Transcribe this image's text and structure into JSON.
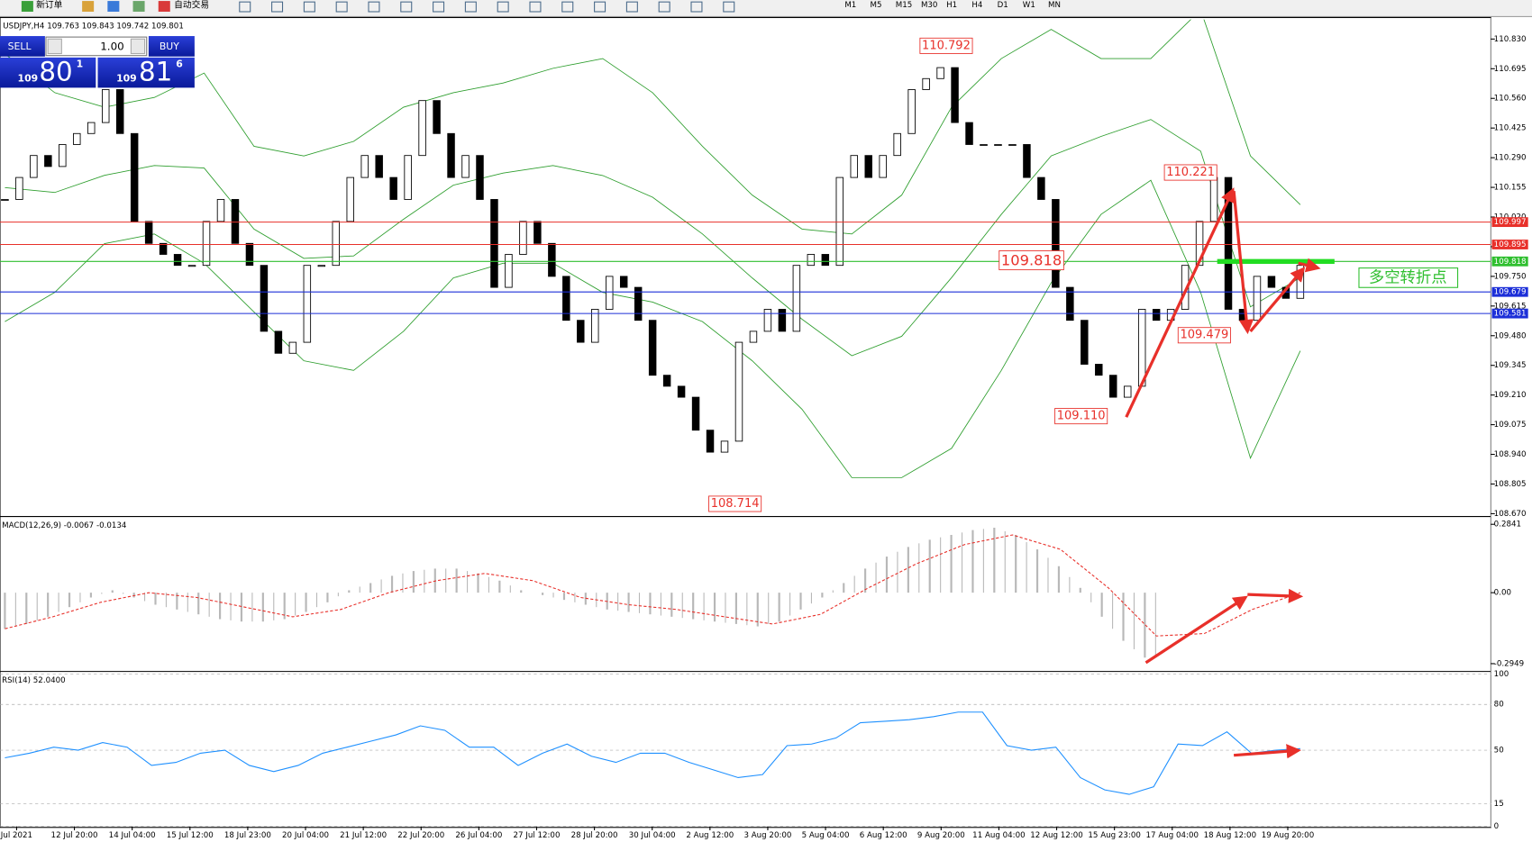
{
  "toolbar": {
    "new_order": "新订单",
    "auto_trade": "自动交易",
    "timeframes": [
      "M1",
      "M5",
      "M15",
      "M30",
      "H1",
      "H4",
      "D1",
      "W1",
      "MN"
    ]
  },
  "trade_panel": {
    "sell": "SELL",
    "buy": "BUY",
    "lot": "1.00",
    "bid_big": "109",
    "bid": "80",
    "bid_sup": "1",
    "ask_big": "109",
    "ask": "81",
    "ask_sup": "6"
  },
  "chart_data": [
    {
      "type": "candlestick",
      "title": "USDJPY,H4  109.763 109.843 109.742 109.801",
      "values": [
        110.1,
        110.2,
        110.3,
        110.25,
        110.35,
        110.4,
        110.45,
        110.6,
        110.4,
        110.0,
        109.9,
        109.85,
        109.8,
        109.8,
        110.0,
        110.1,
        109.9,
        109.8,
        109.5,
        109.4,
        109.45,
        109.8,
        109.8,
        110.0,
        110.2,
        110.3,
        110.2,
        110.1,
        110.3,
        110.55,
        110.4,
        110.2,
        110.3,
        110.1,
        109.7,
        109.85,
        110.0,
        109.9,
        109.75,
        109.55,
        109.45,
        109.6,
        109.75,
        109.7,
        109.55,
        109.3,
        109.25,
        109.2,
        109.05,
        108.95,
        109.0,
        109.45,
        109.5,
        109.6,
        109.5,
        109.8,
        109.85,
        109.8,
        110.2,
        110.3,
        110.2,
        110.3,
        110.4,
        110.6,
        110.65,
        110.7,
        110.45,
        110.35,
        110.35,
        110.35,
        110.35,
        110.2,
        110.1,
        109.7,
        109.55,
        109.35,
        109.3,
        109.2,
        109.25,
        109.6,
        109.55,
        109.6,
        109.8,
        110.0,
        110.2,
        109.6,
        109.55,
        109.75,
        109.7,
        109.65,
        109.8
      ],
      "series": [
        {
          "name": "upper",
          "color": "#2e9e2e",
          "values": [
            110.763,
            110.586,
            110.52,
            110.564,
            110.675,
            110.342,
            110.298,
            110.364,
            110.52,
            110.586,
            110.63,
            110.697,
            110.741,
            110.586,
            110.342,
            110.12,
            109.965,
            109.943,
            110.12,
            110.52,
            110.741,
            110.874,
            110.741,
            110.741,
            110.963,
            110.298,
            110.076
          ]
        },
        {
          "name": "middle",
          "color": "#2e9e2e",
          "values": [
            110.154,
            110.132,
            110.21,
            110.254,
            110.243,
            109.965,
            109.832,
            109.843,
            110.01,
            110.165,
            110.22,
            110.254,
            110.209,
            110.11,
            109.943,
            109.743,
            109.555,
            109.389,
            109.477,
            109.744,
            110.032,
            110.298,
            110.387,
            110.464,
            110.32,
            109.611,
            109.744
          ]
        },
        {
          "name": "lower",
          "color": "#2e9e2e",
          "values": [
            109.544,
            109.677,
            109.899,
            109.943,
            109.81,
            109.588,
            109.366,
            109.322,
            109.5,
            109.743,
            109.81,
            109.81,
            109.677,
            109.633,
            109.544,
            109.366,
            109.145,
            108.834,
            108.834,
            108.967,
            109.322,
            109.721,
            110.032,
            110.187,
            109.677,
            108.923,
            109.411
          ]
        }
      ],
      "hlines": [
        {
          "value": 109.997,
          "color": "#e8302a"
        },
        {
          "value": 109.895,
          "color": "#e8302a"
        },
        {
          "value": 109.818,
          "color": "#2fbf2f"
        },
        {
          "value": 109.679,
          "color": "#1c2fd8"
        },
        {
          "value": 109.581,
          "color": "#1c2fd8"
        }
      ],
      "annotations": [
        "110.792",
        "110.221",
        "109.818",
        "109.479",
        "109.110",
        "108.714"
      ],
      "label": "多空转折点",
      "ylim": [
        108.666,
        110.919
      ],
      "yticks": [
        {
          "value": 108.67,
          "label": "108.670"
        },
        108.805,
        {
          "value": 108.94,
          "label": "108.940"
        },
        109.075,
        {
          "value": 109.21,
          "label": "109.210"
        },
        109.345,
        {
          "value": 109.48,
          "label": "109.480"
        },
        109.615,
        {
          "value": 109.75,
          "label": "109.750"
        },
        109.885,
        {
          "value": 110.02,
          "label": "110.020"
        },
        110.155,
        {
          "value": 110.29,
          "label": "110.290"
        },
        110.425,
        {
          "value": 110.56,
          "label": "110.560"
        },
        110.695,
        {
          "value": 110.83,
          "label": "110.830"
        }
      ],
      "time_labels": [
        "Jul 2021",
        "12 Jul 20:00",
        "14 Jul 04:00",
        "15 Jul 12:00",
        "18 Jul 23:00",
        "20 Jul 04:00",
        "21 Jul 12:00",
        "22 Jul 20:00",
        "26 Jul 04:00",
        "27 Jul 12:00",
        "28 Jul 20:00",
        "30 Jul 04:00",
        "2 Aug 12:00",
        "3 Aug 20:00",
        "5 Aug 04:00",
        "6 Aug 12:00",
        "9 Aug 20:00",
        "11 Aug 04:00",
        "12 Aug 12:00",
        "15 Aug 23:00",
        "17 Aug 04:00",
        "18 Aug 12:00",
        "19 Aug 20:00"
      ]
    },
    {
      "type": "macd",
      "title": "MACD(12,26,9) -0.0067 -0.0134",
      "series": [
        {
          "name": "histogram",
          "color": "#b8b8b8",
          "values": [
            -0.15,
            -0.13,
            -0.1,
            -0.06,
            -0.02,
            0.01,
            -0.02,
            -0.05,
            -0.07,
            -0.09,
            -0.11,
            -0.12,
            -0.12,
            -0.11,
            -0.08,
            -0.04,
            0.01,
            0.04,
            0.07,
            0.09,
            0.1,
            0.1,
            0.08,
            0.05,
            0.01,
            -0.01,
            -0.03,
            -0.05,
            -0.07,
            -0.08,
            -0.09,
            -0.1,
            -0.11,
            -0.12,
            -0.13,
            -0.14,
            -0.12,
            -0.07,
            -0.02,
            0.04,
            0.1,
            0.15,
            0.19,
            0.22,
            0.24,
            0.26,
            0.27,
            0.24,
            0.18,
            0.11,
            0.02,
            -0.1,
            -0.2,
            -0.27
          ]
        },
        {
          "name": "signal",
          "color": "#e8302a",
          "values": [
            -0.15,
            -0.1,
            -0.04,
            0.0,
            -0.02,
            -0.06,
            -0.1,
            -0.07,
            0.0,
            0.05,
            0.08,
            0.05,
            -0.02,
            -0.05,
            -0.07,
            -0.1,
            -0.13,
            -0.09,
            0.02,
            0.12,
            0.2,
            0.24,
            0.18,
            0.02,
            -0.18,
            -0.17,
            -0.07,
            0.0
          ]
        }
      ],
      "ylim": [
        -0.3233,
        0.3084
      ],
      "yticks": [
        0.2841,
        {
          "value": 0,
          "label": "0.00"
        },
        -0.2949
      ]
    },
    {
      "type": "rsi",
      "title": "RSI(14) 52.0400",
      "series": [
        {
          "name": "rsi",
          "color": "#1e90ff",
          "values": [
            45,
            48,
            52,
            50,
            55,
            52,
            40,
            42,
            48,
            50,
            40,
            36,
            40,
            48,
            52,
            56,
            60,
            66,
            63,
            52,
            52,
            40,
            48,
            54,
            46,
            42,
            48,
            48,
            42,
            37,
            32,
            34,
            53,
            54,
            58,
            68,
            69,
            70,
            72,
            75,
            75,
            53,
            50,
            52,
            32,
            24,
            21,
            26,
            54,
            53,
            62,
            48,
            50,
            51
          ]
        }
      ],
      "ylim": [
        0,
        101
      ],
      "yticks": [
        100,
        80,
        50,
        15,
        0
      ]
    }
  ]
}
